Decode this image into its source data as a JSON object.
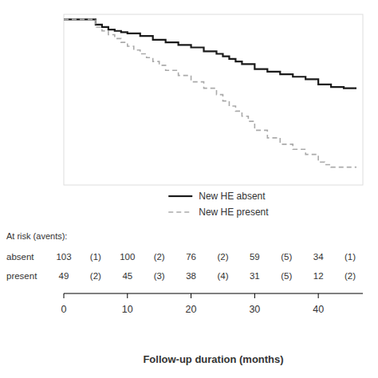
{
  "chart_data": {
    "type": "step",
    "xlabel": "Follow-up duration (months)",
    "xlim": [
      0,
      47
    ],
    "ylim": [
      0.35,
      1.02
    ],
    "xticks": [
      0,
      10,
      20,
      30,
      40
    ],
    "tick_labels": "x",
    "legend": "bottom",
    "series": [
      {
        "name": "New HE absent",
        "color": "#1a1a1a",
        "line_style": "solid",
        "x": [
          0,
          5,
          6,
          7,
          8,
          9,
          10,
          12,
          14,
          16,
          18,
          20,
          22,
          24,
          25,
          26,
          27,
          28,
          30,
          32,
          34,
          36,
          38,
          40,
          42,
          44,
          46
        ],
        "values": [
          1.0,
          0.98,
          0.97,
          0.96,
          0.955,
          0.95,
          0.945,
          0.935,
          0.92,
          0.91,
          0.9,
          0.89,
          0.875,
          0.865,
          0.855,
          0.845,
          0.835,
          0.825,
          0.805,
          0.795,
          0.785,
          0.775,
          0.765,
          0.745,
          0.735,
          0.73,
          0.73
        ]
      },
      {
        "name": "New HE present",
        "color": "#aaaaaa",
        "line_style": "dashed",
        "x": [
          0,
          5,
          6,
          7,
          8,
          9,
          10,
          11,
          12,
          13,
          14,
          15,
          16,
          18,
          20,
          22,
          24,
          25,
          26,
          27,
          28,
          29,
          30,
          32,
          34,
          36,
          38,
          40,
          41,
          42,
          44,
          46
        ],
        "values": [
          1.0,
          0.97,
          0.955,
          0.94,
          0.925,
          0.91,
          0.895,
          0.88,
          0.865,
          0.85,
          0.835,
          0.82,
          0.8,
          0.78,
          0.755,
          0.73,
          0.705,
          0.68,
          0.66,
          0.64,
          0.62,
          0.6,
          0.565,
          0.535,
          0.51,
          0.49,
          0.47,
          0.44,
          0.43,
          0.42,
          0.42,
          0.42
        ]
      }
    ],
    "at_risk": {
      "label": "At risk (avents):",
      "times": [
        0,
        5,
        10,
        15,
        20,
        25,
        30,
        35,
        40,
        45
      ],
      "rows": [
        {
          "name": "absent",
          "values": [
            "103",
            "(1)",
            "100",
            "(2)",
            "76",
            "(2)",
            "59",
            "(5)",
            "34",
            "(1)"
          ]
        },
        {
          "name": "present",
          "values": [
            "49",
            "(2)",
            "45",
            "(3)",
            "38",
            "(4)",
            "31",
            "(5)",
            "12",
            "(2)"
          ]
        }
      ]
    }
  }
}
